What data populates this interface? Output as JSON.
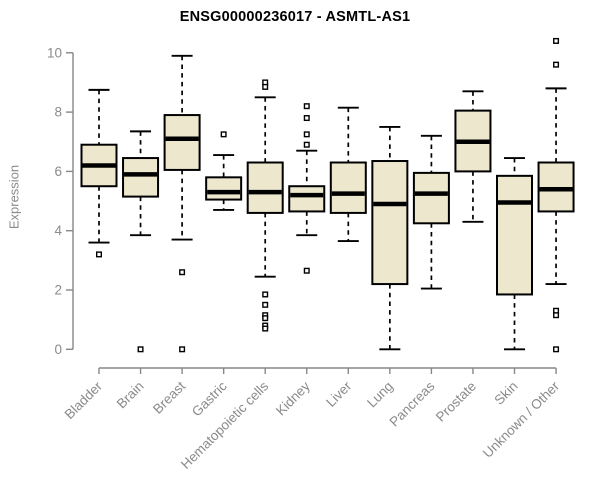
{
  "chart_data": {
    "type": "boxplot",
    "title": "ENSG00000236017 - ASMTL-AS1",
    "xlabel": "",
    "ylabel": "Expression",
    "ylim": [
      0,
      10
    ],
    "yticks": [
      0,
      2,
      4,
      6,
      8,
      10
    ],
    "grid": false,
    "legend": "none",
    "x_tick_rotation": 45,
    "categories": [
      "Bladder",
      "Brain",
      "Breast",
      "Gastric",
      "Hematopoietic cells",
      "Kidney",
      "Liver",
      "Lung",
      "Pancreas",
      "Prostate",
      "Skin",
      "Unknown / Other"
    ],
    "series": [
      {
        "name": "Bladder",
        "whisker_low": 3.6,
        "q1": 5.5,
        "median": 6.2,
        "q3": 6.9,
        "whisker_high": 8.75,
        "outliers": [
          3.2
        ]
      },
      {
        "name": "Brain",
        "whisker_low": 3.85,
        "q1": 5.15,
        "median": 5.9,
        "q3": 6.45,
        "whisker_high": 7.35,
        "outliers": [
          0
        ]
      },
      {
        "name": "Breast",
        "whisker_low": 3.7,
        "q1": 6.05,
        "median": 7.1,
        "q3": 7.9,
        "whisker_high": 9.9,
        "outliers": [
          2.6,
          0
        ]
      },
      {
        "name": "Gastric",
        "whisker_low": 4.7,
        "q1": 5.05,
        "median": 5.3,
        "q3": 5.8,
        "whisker_high": 6.55,
        "outliers": [
          7.25
        ]
      },
      {
        "name": "Hematopoietic cells",
        "whisker_low": 2.45,
        "q1": 4.6,
        "median": 5.3,
        "q3": 6.3,
        "whisker_high": 8.5,
        "outliers": [
          9.0,
          8.85,
          1.85,
          1.5,
          1.15,
          1.05,
          0.8,
          0.7
        ]
      },
      {
        "name": "Kidney",
        "whisker_low": 3.85,
        "q1": 4.65,
        "median": 5.2,
        "q3": 5.5,
        "whisker_high": 6.7,
        "outliers": [
          8.2,
          7.8,
          7.25,
          6.9,
          2.65
        ]
      },
      {
        "name": "Liver",
        "whisker_low": 3.65,
        "q1": 4.6,
        "median": 5.25,
        "q3": 6.3,
        "whisker_high": 8.15,
        "outliers": []
      },
      {
        "name": "Lung",
        "whisker_low": 0.0,
        "q1": 2.2,
        "median": 4.9,
        "q3": 6.35,
        "whisker_high": 7.5,
        "outliers": []
      },
      {
        "name": "Pancreas",
        "whisker_low": 2.05,
        "q1": 4.25,
        "median": 5.25,
        "q3": 5.95,
        "whisker_high": 7.2,
        "outliers": []
      },
      {
        "name": "Prostate",
        "whisker_low": 4.3,
        "q1": 6.0,
        "median": 7.0,
        "q3": 8.05,
        "whisker_high": 8.7,
        "outliers": []
      },
      {
        "name": "Skin",
        "whisker_low": 0.0,
        "q1": 1.85,
        "median": 4.95,
        "q3": 5.85,
        "whisker_high": 6.45,
        "outliers": []
      },
      {
        "name": "Unknown / Other",
        "whisker_low": 2.2,
        "q1": 4.65,
        "median": 5.4,
        "q3": 6.3,
        "whisker_high": 8.8,
        "outliers": [
          10.4,
          9.6,
          1.3,
          1.15,
          0
        ]
      }
    ],
    "colors": {
      "background": "#ffffff",
      "box_fill": "#ede7cd",
      "box_border": "#000000",
      "median": "#000000",
      "whisker": "#000000",
      "outlier": "#000000",
      "axis": "#878787",
      "tick_label": "#8a8a8a",
      "title": "#000000"
    }
  }
}
